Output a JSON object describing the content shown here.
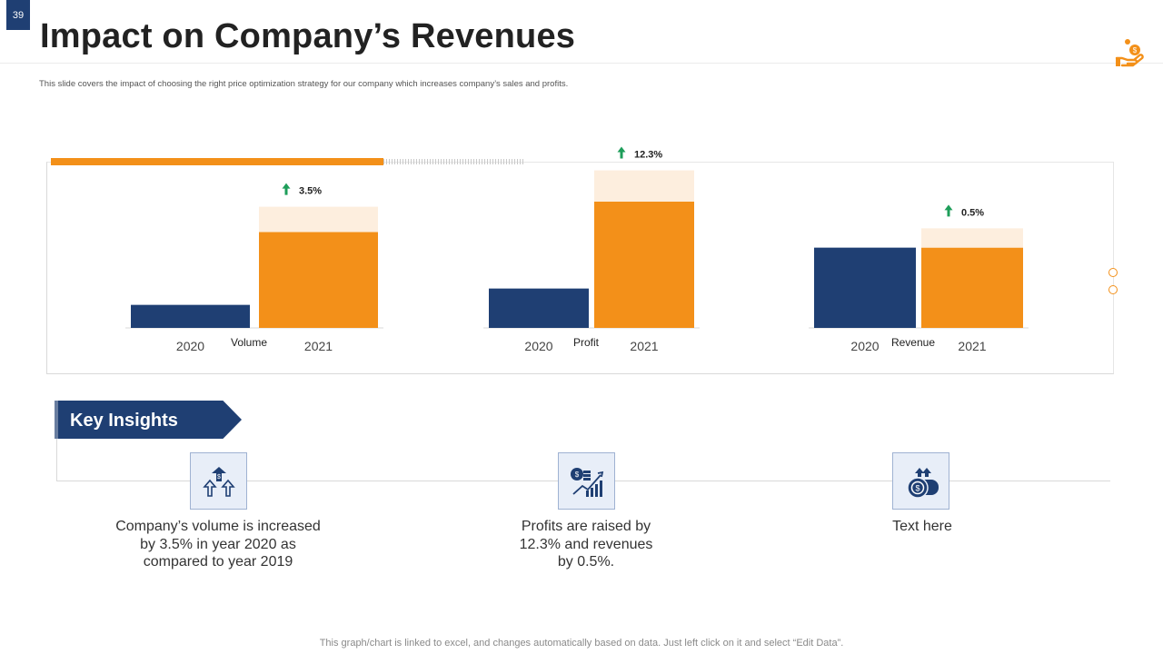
{
  "slide": {
    "page_number": "39",
    "title": "Impact on Company’s Revenues",
    "subtitle": "This slide covers the impact of choosing the right price optimization strategy for our company which increases company’s sales and profits.",
    "footer": "This graph/chart is linked to excel,  and changes automatically based on data. Just left click on it and select “Edit Data”."
  },
  "colors": {
    "navy": "#1f3f73",
    "orange": "#f39019",
    "orange_light": "#fdeede",
    "growth_arrow": "#1e9e5a"
  },
  "chart_data": [
    {
      "type": "bar",
      "title": "Volume",
      "categories": [
        "2020",
        "2021"
      ],
      "values": [
        15.5,
        64.5
      ],
      "stacked_top": [
        0,
        17
      ],
      "change_label": "3.5%",
      "ylim": [
        0,
        110
      ]
    },
    {
      "type": "bar",
      "title": "Profit",
      "categories": [
        "2020",
        "2021"
      ],
      "values": [
        26.5,
        85
      ],
      "stacked_top": [
        0,
        21
      ],
      "change_label": "12.3%",
      "ylim": [
        0,
        110
      ]
    },
    {
      "type": "bar",
      "title": "Revenue",
      "categories": [
        "2020",
        "2021"
      ],
      "values": [
        54,
        54
      ],
      "stacked_top": [
        0,
        13
      ],
      "change_label": "0.5%",
      "ylim": [
        0,
        110
      ]
    }
  ],
  "insights": {
    "heading": "Key Insights",
    "items": [
      {
        "icon": "volume-growth-icon",
        "text": "Company’s volume  is increased\nby 3.5% in year 2020 as\ncompared to year 2019"
      },
      {
        "icon": "profit-growth-icon",
        "text": "Profits are raised by\n12.3% and revenues\nby 0.5%."
      },
      {
        "icon": "revenue-coins-icon",
        "text": "Text here"
      }
    ]
  }
}
